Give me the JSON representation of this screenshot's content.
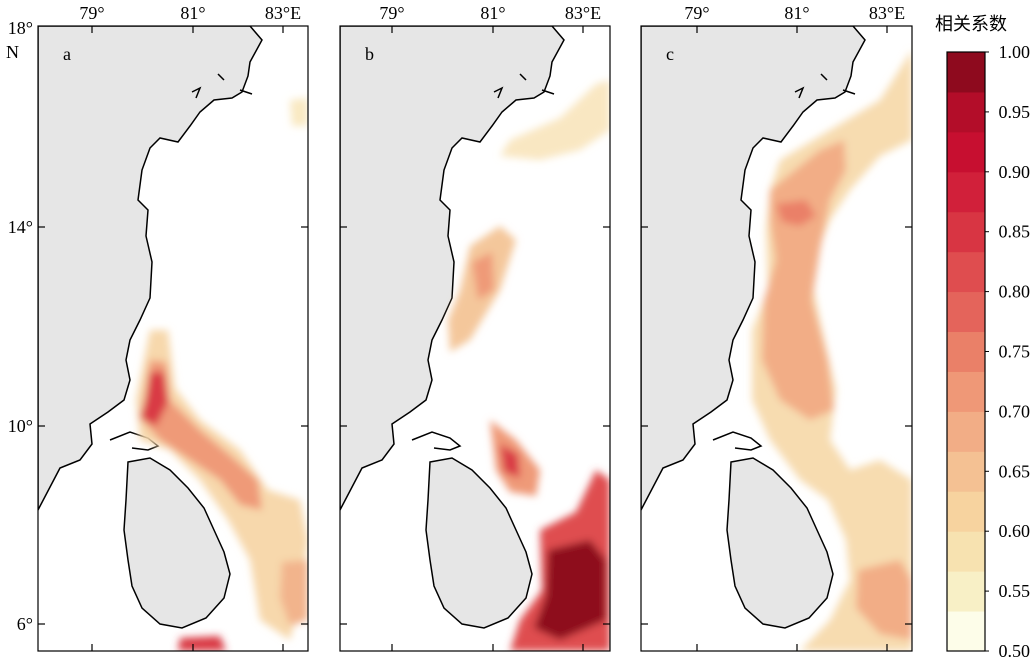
{
  "map": {
    "lon_ticks": [
      "79°",
      "81°",
      "83°E"
    ],
    "lat_ticks": [
      "18°",
      "14°",
      "10°",
      "6°"
    ],
    "lat_unit": "N",
    "panels": [
      {
        "label": "a"
      },
      {
        "label": "b"
      },
      {
        "label": "c"
      }
    ],
    "land_color": "#e6e6e6",
    "coast_color": "#000000"
  },
  "colorbar": {
    "title": "相关系数",
    "min": 0.5,
    "max": 1.0,
    "tick_labels": [
      "1.00",
      "0.95",
      "0.90",
      "0.85",
      "0.80",
      "0.75",
      "0.70",
      "0.65",
      "0.60",
      "0.55",
      "0.50"
    ],
    "colors": [
      "#fdfde9",
      "#f8f0c6",
      "#f7e2b0",
      "#f7d39f",
      "#f4c193",
      "#f2ad86",
      "#ef9877",
      "#ea8068",
      "#e4645b",
      "#df4d4f",
      "#d83543",
      "#d1203a",
      "#c70f30",
      "#b30d29",
      "#8e0a1e"
    ]
  }
}
